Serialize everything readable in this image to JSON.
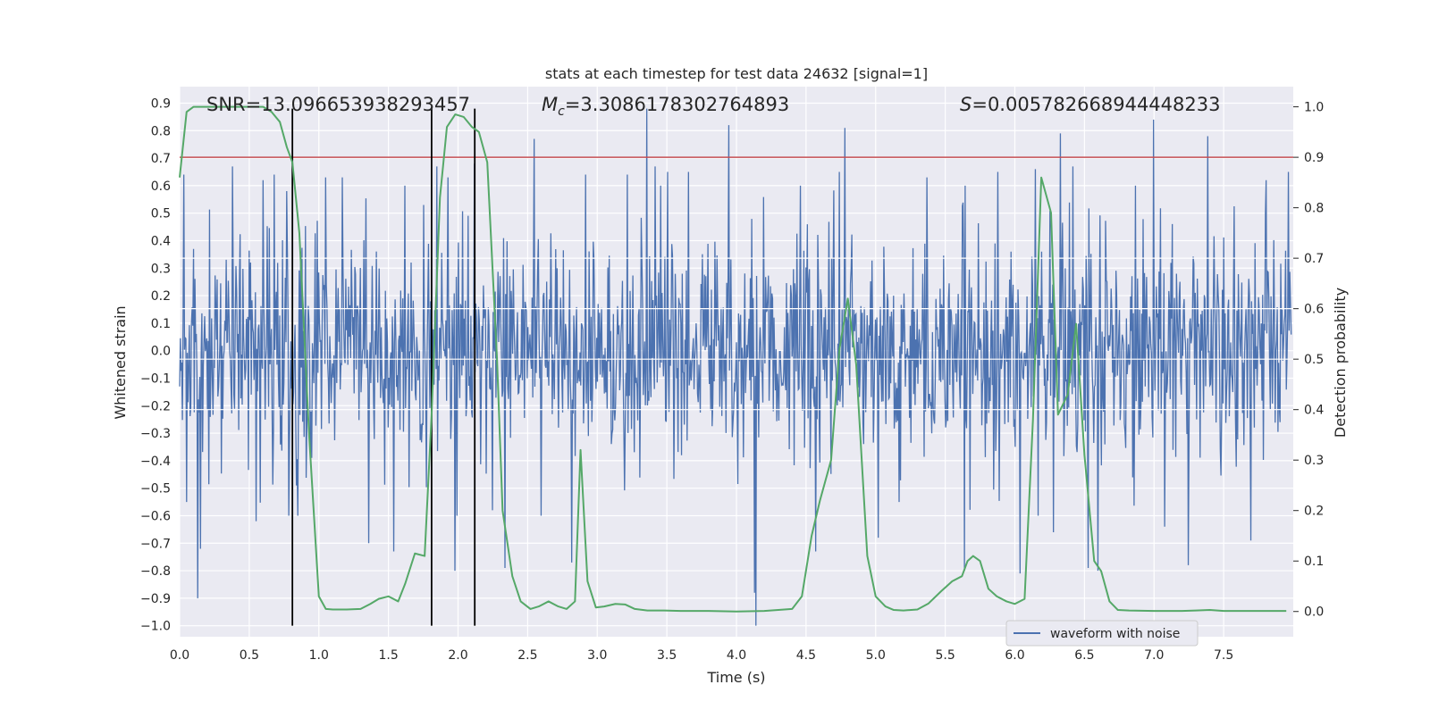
{
  "chart_data": {
    "type": "line",
    "title": "stats at each timestep for test data 24632 [signal=1]",
    "xlabel": "Time (s)",
    "ylabel_left": "Whitened strain",
    "ylabel_right": "Detection probability",
    "xlim": [
      0.0,
      8.0
    ],
    "ylim_left": [
      -1.04,
      0.96
    ],
    "ylim_right": [
      -0.05,
      1.04
    ],
    "x_ticks": [
      0.0,
      0.5,
      1.0,
      1.5,
      2.0,
      2.5,
      3.0,
      3.5,
      4.0,
      4.5,
      5.0,
      5.5,
      6.0,
      6.5,
      7.0,
      7.5
    ],
    "x_tick_labels": [
      "0.0",
      "0.5",
      "1.0",
      "1.5",
      "2.0",
      "2.5",
      "3.0",
      "3.5",
      "4.0",
      "4.5",
      "5.0",
      "5.5",
      "6.0",
      "6.5",
      "7.0",
      "7.5"
    ],
    "y_left_ticks": [
      0.9,
      0.8,
      0.7,
      0.6,
      0.5,
      0.4,
      0.3,
      0.2,
      0.1,
      0.0,
      -0.1,
      -0.2,
      -0.3,
      -0.4,
      -0.5,
      -0.6,
      -0.7,
      -0.8,
      -0.9,
      -1.0
    ],
    "y_left_tick_labels": [
      "0.9",
      "0.8",
      "0.7",
      "0.6",
      "0.5",
      "0.4",
      "0.3",
      "0.2",
      "0.1",
      "0.0",
      "−0.1",
      "−0.2",
      "−0.3",
      "−0.4",
      "−0.5",
      "−0.6",
      "−0.7",
      "−0.8",
      "−0.9",
      "−1.0"
    ],
    "y_right_ticks": [
      1.0,
      0.9,
      0.8,
      0.7,
      0.6,
      0.5,
      0.4,
      0.3,
      0.2,
      0.1,
      0.0
    ],
    "y_right_tick_labels": [
      "1.0",
      "0.9",
      "0.8",
      "0.7",
      "0.6",
      "0.5",
      "0.4",
      "0.3",
      "0.2",
      "0.1",
      "0.0"
    ],
    "annotations": {
      "snr": "SNR=13.096653938293457",
      "mc_prefix": "M",
      "mc_sub": "c",
      "mc_value": "=3.3086178302764893",
      "s_prefix": "S",
      "s_value": "=0.005782668944448233"
    },
    "legend": {
      "label": "waveform with noise",
      "placement": "lower-right"
    },
    "threshold_line": {
      "y_right": 0.9,
      "color": "#c44e52"
    },
    "vertical_lines": [
      0.81,
      1.81,
      2.12
    ],
    "vertical_lines_range_left": [
      -1.0,
      0.88
    ],
    "waveform_series": {
      "name": "waveform with noise",
      "color": "#4c72b0",
      "seed": 24632,
      "n_points": 1600,
      "typical_amplitude": 0.3,
      "spikes": [
        [
          0.03,
          0.64
        ],
        [
          0.05,
          -0.55
        ],
        [
          0.13,
          -0.9
        ],
        [
          0.15,
          -0.72
        ],
        [
          0.38,
          0.67
        ],
        [
          0.55,
          -0.62
        ],
        [
          0.6,
          0.62
        ],
        [
          0.68,
          0.64
        ],
        [
          0.77,
          0.58
        ],
        [
          0.87,
          0.36
        ],
        [
          1.05,
          0.63
        ],
        [
          1.17,
          0.63
        ],
        [
          1.36,
          -0.7
        ],
        [
          1.54,
          -0.73
        ],
        [
          1.62,
          0.6
        ],
        [
          1.85,
          0.67
        ],
        [
          1.93,
          0.63
        ],
        [
          1.98,
          -0.8
        ],
        [
          2.12,
          0.68
        ],
        [
          2.25,
          -0.58
        ],
        [
          2.34,
          -0.79
        ],
        [
          2.55,
          0.77
        ],
        [
          2.82,
          -0.77
        ],
        [
          2.92,
          0.64
        ],
        [
          3.22,
          0.64
        ],
        [
          3.36,
          0.88
        ],
        [
          3.42,
          0.67
        ],
        [
          3.51,
          0.65
        ],
        [
          3.66,
          0.65
        ],
        [
          3.95,
          0.82
        ],
        [
          4.15,
          -1.0
        ],
        [
          4.14,
          -0.88
        ],
        [
          4.47,
          0.6
        ],
        [
          4.58,
          -0.73
        ],
        [
          4.75,
          0.65
        ],
        [
          4.79,
          0.81
        ],
        [
          5.03,
          -0.68
        ],
        [
          5.18,
          -0.55
        ],
        [
          5.38,
          0.63
        ],
        [
          5.65,
          -0.8
        ],
        [
          5.89,
          0.65
        ],
        [
          6.05,
          -0.81
        ],
        [
          6.16,
          0.66
        ],
        [
          6.29,
          -0.66
        ],
        [
          6.34,
          0.79
        ],
        [
          6.43,
          0.67
        ],
        [
          6.54,
          -0.79
        ],
        [
          6.61,
          -0.8
        ],
        [
          6.88,
          0.6
        ],
        [
          7.01,
          0.84
        ],
        [
          7.09,
          -0.64
        ],
        [
          7.26,
          -0.78
        ],
        [
          7.4,
          0.78
        ],
        [
          7.71,
          -0.69
        ],
        [
          7.82,
          0.62
        ],
        [
          7.98,
          0.65
        ]
      ]
    },
    "probability_series": {
      "name": "Detection probability",
      "color": "#55a868",
      "x": [
        0.0,
        0.05,
        0.1,
        0.2,
        0.3,
        0.4,
        0.5,
        0.6,
        0.66,
        0.72,
        0.77,
        0.81,
        0.86,
        0.93,
        1.0,
        1.05,
        1.1,
        1.2,
        1.3,
        1.37,
        1.43,
        1.5,
        1.57,
        1.62,
        1.69,
        1.76,
        1.81,
        1.87,
        1.92,
        1.98,
        2.04,
        2.1,
        2.15,
        2.21,
        2.28,
        2.32,
        2.39,
        2.45,
        2.52,
        2.58,
        2.65,
        2.72,
        2.78,
        2.84,
        2.88,
        2.93,
        2.99,
        3.05,
        3.13,
        3.2,
        3.27,
        3.36,
        3.48,
        3.6,
        3.8,
        4.0,
        4.2,
        4.4,
        4.47,
        4.54,
        4.6,
        4.68,
        4.74,
        4.8,
        4.86,
        4.94,
        5.0,
        5.07,
        5.13,
        5.2,
        5.3,
        5.38,
        5.47,
        5.55,
        5.62,
        5.66,
        5.7,
        5.75,
        5.81,
        5.87,
        5.94,
        6.0,
        6.07,
        6.13,
        6.19,
        6.26,
        6.31,
        6.38,
        6.44,
        6.5,
        6.57,
        6.62,
        6.68,
        6.74,
        6.82,
        7.0,
        7.2,
        7.3,
        7.4,
        7.5,
        7.7,
        7.9,
        7.95
      ],
      "values": [
        0.86,
        0.99,
        1.0,
        1.0,
        1.0,
        1.0,
        1.0,
        1.0,
        0.99,
        0.97,
        0.92,
        0.89,
        0.75,
        0.35,
        0.03,
        0.005,
        0.004,
        0.004,
        0.005,
        0.015,
        0.025,
        0.03,
        0.02,
        0.055,
        0.115,
        0.11,
        0.39,
        0.82,
        0.96,
        0.985,
        0.98,
        0.96,
        0.95,
        0.89,
        0.5,
        0.2,
        0.07,
        0.02,
        0.005,
        0.01,
        0.02,
        0.01,
        0.005,
        0.02,
        0.32,
        0.06,
        0.008,
        0.01,
        0.015,
        0.014,
        0.005,
        0.002,
        0.002,
        0.001,
        0.001,
        0.0,
        0.001,
        0.005,
        0.03,
        0.15,
        0.22,
        0.3,
        0.52,
        0.62,
        0.49,
        0.11,
        0.03,
        0.01,
        0.003,
        0.002,
        0.004,
        0.016,
        0.04,
        0.06,
        0.07,
        0.1,
        0.11,
        0.1,
        0.045,
        0.03,
        0.02,
        0.015,
        0.025,
        0.38,
        0.86,
        0.79,
        0.39,
        0.43,
        0.57,
        0.31,
        0.1,
        0.08,
        0.02,
        0.003,
        0.002,
        0.001,
        0.001,
        0.002,
        0.003,
        0.001,
        0.001,
        0.001,
        0.001
      ]
    }
  }
}
